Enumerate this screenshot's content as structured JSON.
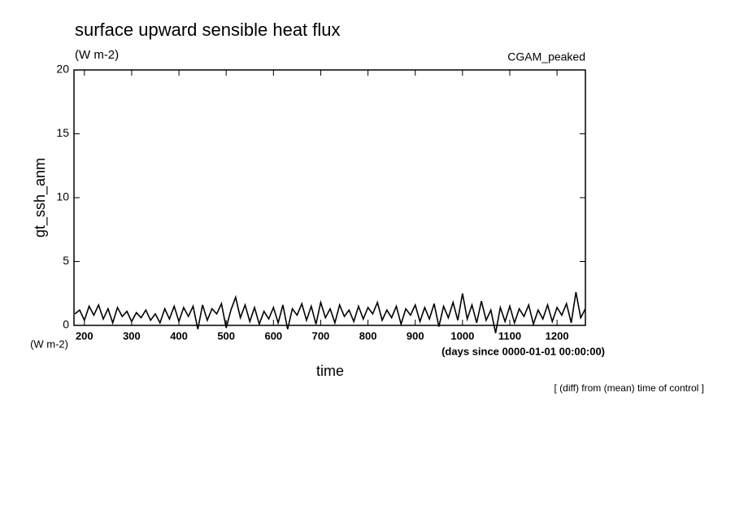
{
  "chart_data": {
    "type": "line",
    "title": "surface upward sensible heat flux",
    "subtitle": "(W m-2)",
    "annotation": "CGAM_peaked",
    "ylabel": "gt_ssh_anm",
    "yunit": "(W m-2)",
    "xunit": "(days since 0000-01-01 00:00:00)",
    "xlabel": "time",
    "footnote": "[ (diff) from (mean) time of control ]",
    "xlim": [
      178,
      1260
    ],
    "ylim": [
      0,
      20
    ],
    "xticks": [
      200,
      300,
      400,
      500,
      600,
      700,
      800,
      900,
      1000,
      1100,
      1200
    ],
    "yticks": [
      0,
      5,
      10,
      15,
      20
    ],
    "x": [
      180,
      190,
      200,
      210,
      220,
      230,
      240,
      250,
      260,
      270,
      280,
      290,
      300,
      310,
      320,
      330,
      340,
      350,
      360,
      370,
      380,
      390,
      400,
      410,
      420,
      430,
      440,
      450,
      460,
      470,
      480,
      490,
      500,
      510,
      520,
      530,
      540,
      550,
      560,
      570,
      580,
      590,
      600,
      610,
      620,
      630,
      640,
      650,
      660,
      670,
      680,
      690,
      700,
      710,
      720,
      730,
      740,
      750,
      760,
      770,
      780,
      790,
      800,
      810,
      820,
      830,
      840,
      850,
      860,
      870,
      880,
      890,
      900,
      910,
      920,
      930,
      940,
      950,
      960,
      970,
      980,
      990,
      1000,
      1010,
      1020,
      1030,
      1040,
      1050,
      1060,
      1070,
      1080,
      1090,
      1100,
      1110,
      1120,
      1130,
      1140,
      1150,
      1160,
      1170,
      1180,
      1190,
      1200,
      1210,
      1220,
      1230,
      1240,
      1250,
      1260
    ],
    "series": [
      {
        "name": "gt_ssh_anm",
        "color": "#000000",
        "values": [
          0.9,
          1.2,
          0.4,
          1.5,
          0.8,
          1.6,
          0.5,
          1.3,
          0.2,
          1.4,
          0.7,
          1.1,
          0.3,
          1.0,
          0.6,
          1.2,
          0.4,
          0.9,
          0.2,
          1.3,
          0.5,
          1.5,
          0.3,
          1.4,
          0.7,
          1.5,
          -0.3,
          1.6,
          0.4,
          1.3,
          0.9,
          1.7,
          -0.2,
          1.2,
          2.2,
          0.6,
          1.6,
          0.3,
          1.4,
          0.1,
          1.1,
          0.5,
          1.4,
          0.2,
          1.6,
          -0.3,
          1.3,
          0.8,
          1.7,
          0.4,
          1.5,
          0.1,
          1.8,
          0.6,
          1.3,
          0.2,
          1.6,
          0.7,
          1.2,
          0.3,
          1.5,
          0.5,
          1.4,
          0.9,
          1.8,
          0.4,
          1.2,
          0.6,
          1.5,
          0.1,
          1.3,
          0.8,
          1.6,
          0.3,
          1.4,
          0.5,
          1.7,
          -0.1,
          1.5,
          0.6,
          1.8,
          0.4,
          2.5,
          0.5,
          1.6,
          0.2,
          1.9,
          0.4,
          1.2,
          -0.6,
          1.4,
          0.3,
          1.5,
          0.2,
          1.3,
          0.7,
          1.6,
          0.1,
          1.2,
          0.5,
          1.6,
          0.3,
          1.4,
          0.8,
          1.7,
          0.2,
          2.6,
          0.6,
          1.3
        ]
      }
    ]
  }
}
